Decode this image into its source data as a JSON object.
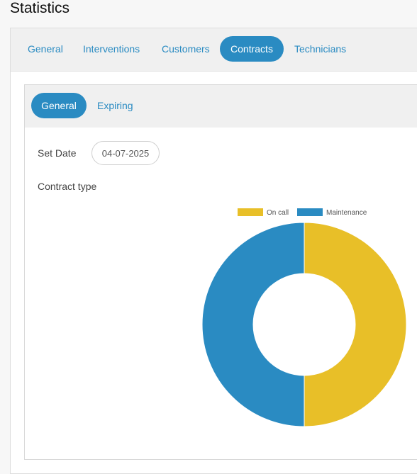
{
  "page": {
    "title": "Statistics"
  },
  "main_tabs": [
    {
      "label": "General",
      "active": false
    },
    {
      "label": "Interventions",
      "active": false
    },
    {
      "label": "Customers",
      "active": false
    },
    {
      "label": "Contracts",
      "active": true
    },
    {
      "label": "Technicians",
      "active": false
    }
  ],
  "sub_tabs": [
    {
      "label": "General",
      "active": true
    },
    {
      "label": "Expiring",
      "active": false
    }
  ],
  "filters": {
    "set_date_label": "Set Date",
    "set_date_value": "04-07-2025"
  },
  "colors": {
    "accent": "#2a8bc2",
    "on_call": "#e8bf28",
    "maintenance": "#2a8bc2"
  },
  "chart_data": {
    "type": "pie",
    "title": "Contract type",
    "categories": [
      "On call",
      "Maintenance"
    ],
    "values": [
      50,
      50
    ],
    "colors": [
      "#e8bf28",
      "#2a8bc2"
    ],
    "legend": "top",
    "donut": true
  }
}
